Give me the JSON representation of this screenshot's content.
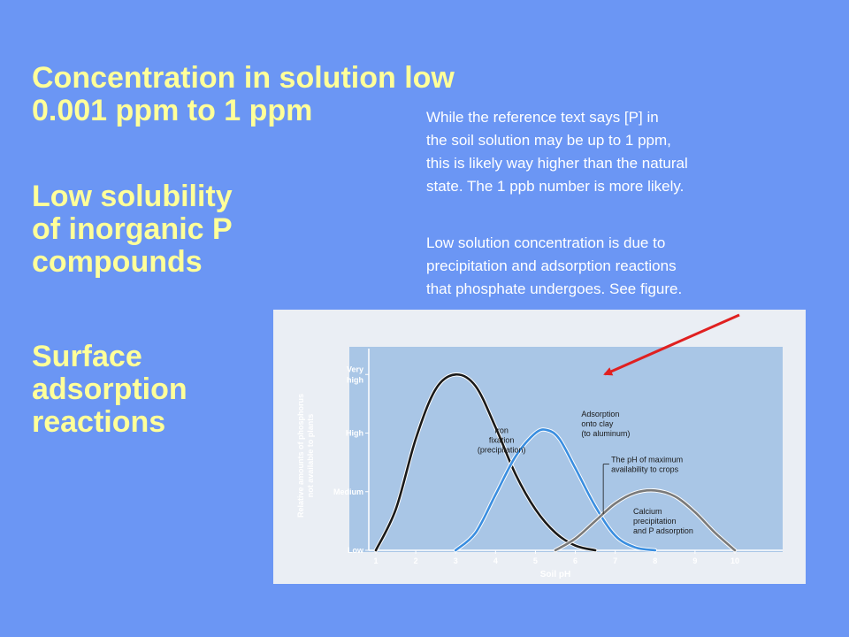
{
  "heading_concentration": [
    "Concentration in solution low",
    "0.001 ppm to 1 ppm"
  ],
  "heading_solubility": [
    "Low solubility",
    "of inorganic P",
    "compounds"
  ],
  "heading_adsorption": [
    "Surface",
    "adsorption",
    "reactions"
  ],
  "note_reference": [
    "While the reference text says [P] in",
    "the soil solution may be up to 1 ppm,",
    "this is likely way higher than the natural",
    "state.  The 1 ppb number is more likely."
  ],
  "note_precipitation": [
    "Low solution concentration is due to",
    "precipitation and adsorption reactions",
    "that phosphate undergoes.  See figure."
  ],
  "colors": {
    "background": "#6b96f4",
    "heading_text": "#ffff99",
    "note_text": "#ffffff",
    "arrow": "#e02020",
    "plot_background": "#a9c6e6",
    "curve_iron": "#1a1a1a",
    "curve_clay": "#3a8ee0",
    "curve_calcium": "#7a7a7a"
  },
  "chart_data": {
    "type": "line",
    "title": "",
    "xlabel": "Soil pH",
    "ylabel": "Relative amounts of phosphorus not available to plants",
    "x_ticks": [
      1,
      2,
      3,
      4,
      5,
      6,
      7,
      8,
      9,
      10
    ],
    "xlim": [
      1,
      10
    ],
    "y_tick_labels": [
      "Low",
      "Medium",
      "High",
      "Very high"
    ],
    "y_tick_values": [
      0,
      1,
      2,
      3
    ],
    "ylim": [
      0,
      3.2
    ],
    "grid": false,
    "series": [
      {
        "name": "Iron fixation (precipitation)",
        "color_key": "curve_iron",
        "x": [
          1.0,
          1.5,
          2.0,
          2.5,
          3.0,
          3.5,
          4.0,
          4.5,
          5.0,
          5.5,
          6.0,
          6.5
        ],
        "y": [
          0.0,
          0.7,
          1.9,
          2.75,
          3.0,
          2.8,
          2.1,
          1.3,
          0.7,
          0.3,
          0.08,
          0.0
        ]
      },
      {
        "name": "Adsorption onto clay (to aluminum)",
        "color_key": "curve_clay",
        "x": [
          3.0,
          3.5,
          4.0,
          4.5,
          5.0,
          5.3,
          5.6,
          6.0,
          6.5,
          7.0,
          7.5,
          8.0
        ],
        "y": [
          0.0,
          0.3,
          0.95,
          1.6,
          2.0,
          2.05,
          1.9,
          1.4,
          0.75,
          0.25,
          0.05,
          0.0
        ]
      },
      {
        "name": "Calcium precipitation and P adsorption",
        "color_key": "curve_calcium",
        "x": [
          5.5,
          6.0,
          6.5,
          7.0,
          7.5,
          8.0,
          8.5,
          9.0,
          9.5,
          10.0
        ],
        "y": [
          0.0,
          0.2,
          0.5,
          0.8,
          0.98,
          1.02,
          0.92,
          0.65,
          0.3,
          0.0
        ]
      }
    ],
    "annotations": {
      "iron": [
        "Iron",
        "fixation",
        "(precipitation)"
      ],
      "clay": [
        "Adsorption",
        "onto clay",
        "(to aluminum)"
      ],
      "max_availability": [
        "The pH of maximum",
        "availability to crops"
      ],
      "calcium": [
        "Calcium",
        "precipitation",
        "and P adsorption"
      ]
    },
    "max_availability_ph": 6.7
  }
}
